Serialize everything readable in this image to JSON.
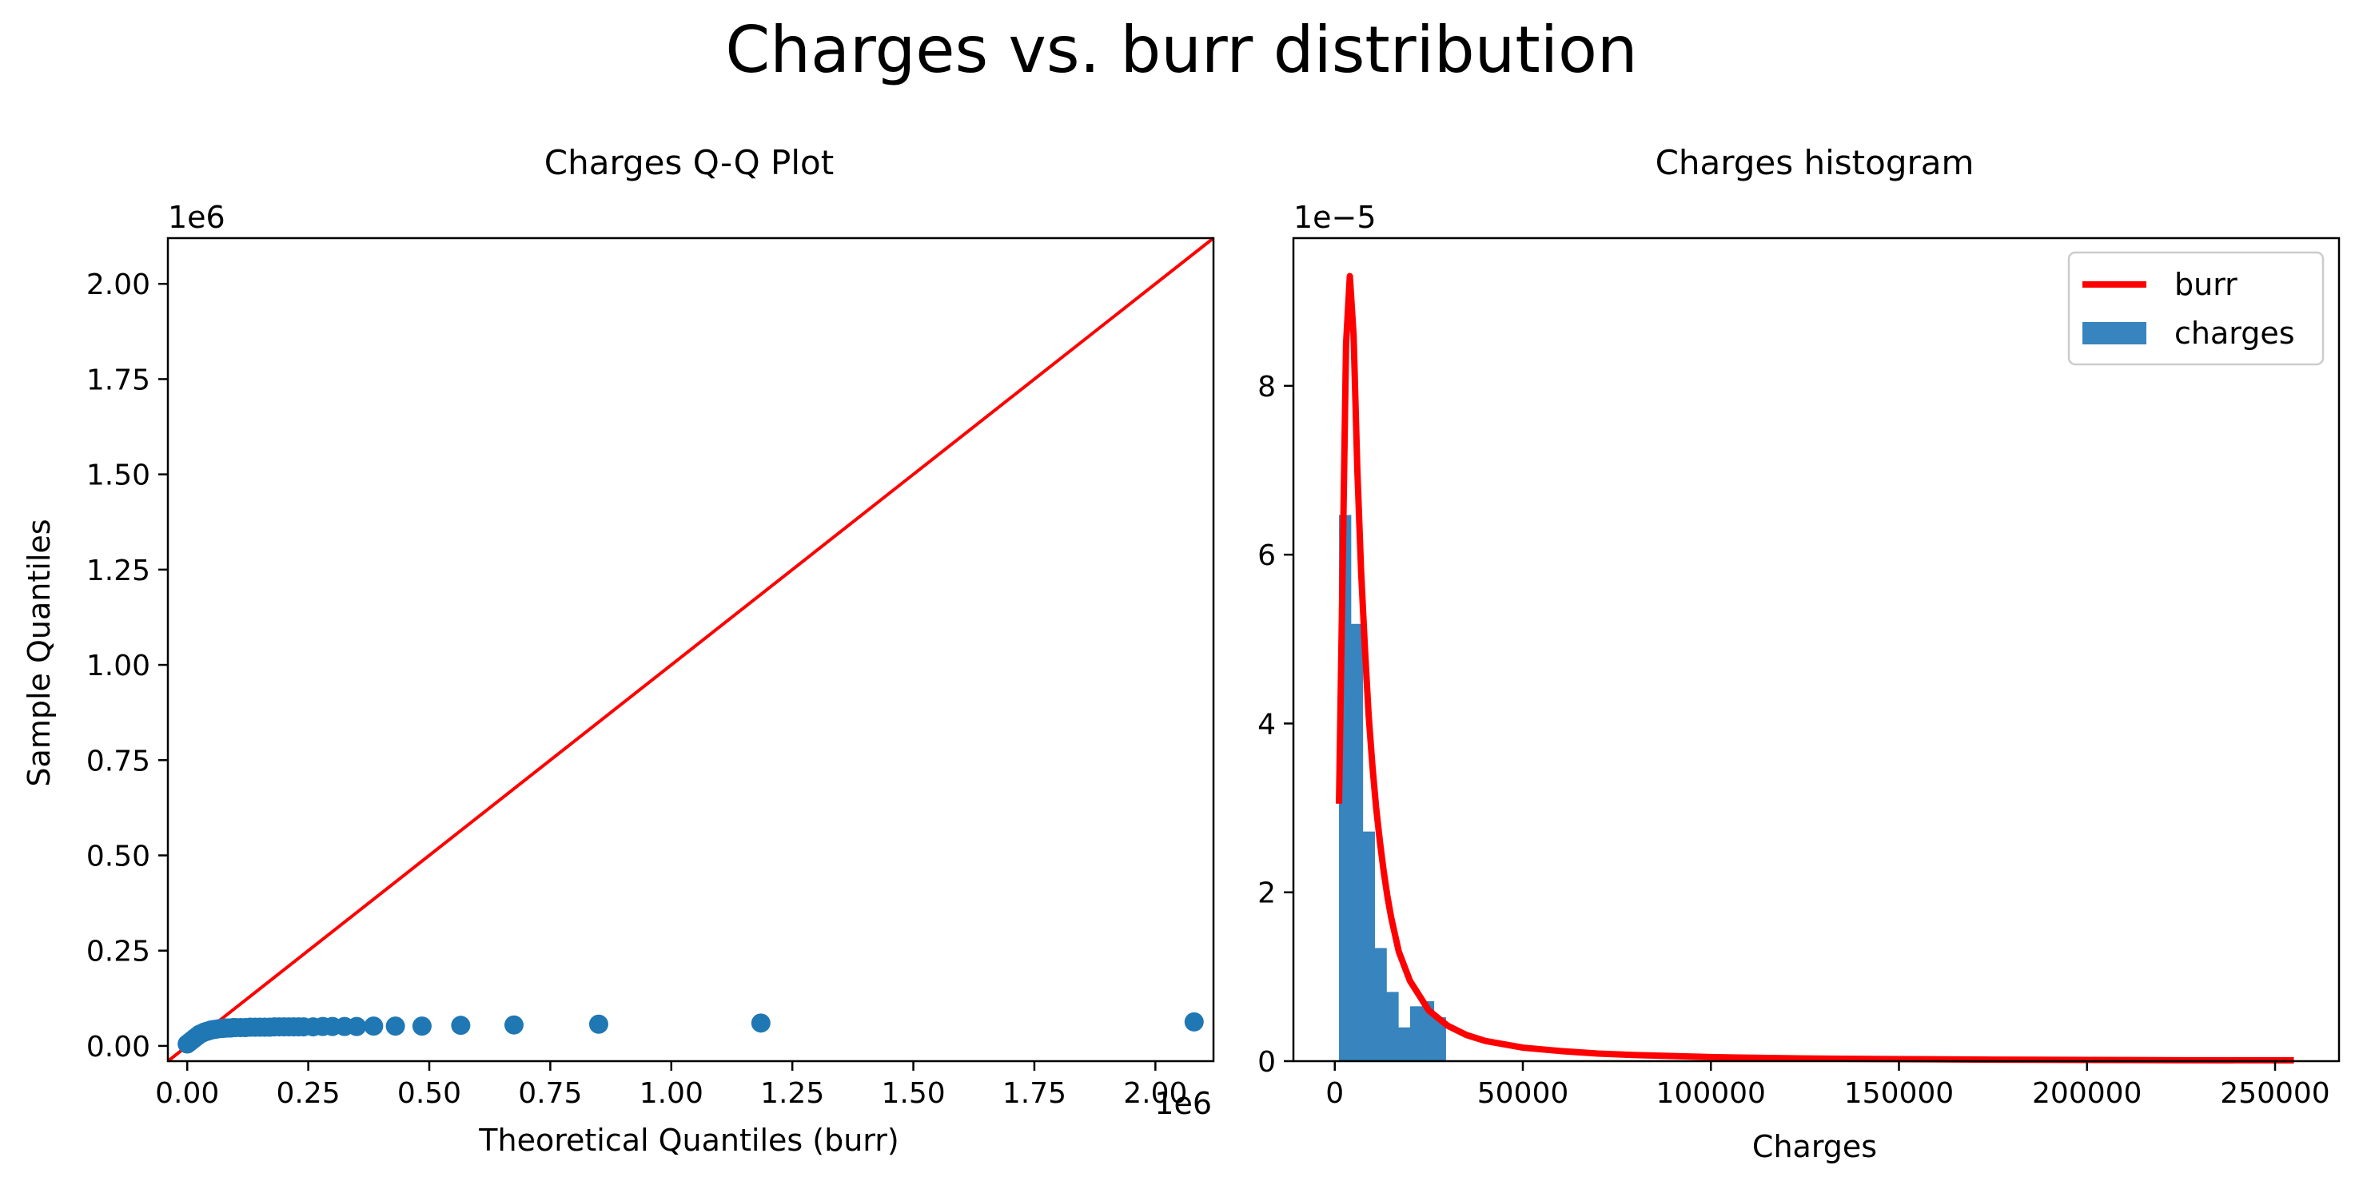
{
  "figure": {
    "suptitle": "Charges vs. burr distribution"
  },
  "chart_data": [
    {
      "type": "scatter",
      "title": "Charges Q-Q Plot",
      "xlabel": "Theoretical Quantiles (burr)",
      "ylabel": "Sample Quantiles",
      "x_offset_label": "1e6",
      "y_offset_label": "1e6",
      "xlim": [
        -0.04,
        2.12
      ],
      "ylim": [
        -0.04,
        2.12
      ],
      "xticks": [
        0.0,
        0.25,
        0.5,
        0.75,
        1.0,
        1.25,
        1.5,
        1.75,
        2.0
      ],
      "xtick_labels": [
        "0.00",
        "0.25",
        "0.50",
        "0.75",
        "1.00",
        "1.25",
        "1.50",
        "1.75",
        "2.00"
      ],
      "yticks": [
        0.0,
        0.25,
        0.5,
        0.75,
        1.0,
        1.25,
        1.5,
        1.75,
        2.0
      ],
      "ytick_labels": [
        "0.00",
        "0.25",
        "0.50",
        "0.75",
        "1.00",
        "1.25",
        "1.50",
        "1.75",
        "2.00"
      ],
      "grid": false,
      "reference_line": {
        "color": "#ff0000",
        "points": [
          [
            -0.04,
            -0.04
          ],
          [
            2.12,
            2.12
          ]
        ]
      },
      "marker_color": "#1f77b4",
      "points": {
        "x": [
          0.0,
          0.005,
          0.01,
          0.015,
          0.02,
          0.025,
          0.03,
          0.035,
          0.04,
          0.045,
          0.05,
          0.055,
          0.06,
          0.065,
          0.07,
          0.075,
          0.08,
          0.085,
          0.09,
          0.095,
          0.1,
          0.11,
          0.12,
          0.13,
          0.14,
          0.15,
          0.16,
          0.17,
          0.18,
          0.19,
          0.2,
          0.21,
          0.22,
          0.23,
          0.24,
          0.26,
          0.28,
          0.3,
          0.325,
          0.35,
          0.385,
          0.43,
          0.485,
          0.565,
          0.675,
          0.85,
          1.185,
          2.08
        ],
        "y": [
          0.005,
          0.01,
          0.015,
          0.02,
          0.025,
          0.03,
          0.033,
          0.036,
          0.038,
          0.04,
          0.042,
          0.043,
          0.044,
          0.045,
          0.046,
          0.046,
          0.047,
          0.047,
          0.047,
          0.048,
          0.048,
          0.048,
          0.048,
          0.049,
          0.049,
          0.049,
          0.049,
          0.049,
          0.05,
          0.05,
          0.05,
          0.05,
          0.05,
          0.05,
          0.05,
          0.05,
          0.051,
          0.051,
          0.051,
          0.051,
          0.052,
          0.052,
          0.052,
          0.054,
          0.055,
          0.057,
          0.06,
          0.063
        ]
      }
    },
    {
      "type": "bar",
      "title": "Charges histogram",
      "xlabel": "Charges",
      "ylabel": "",
      "y_offset_label": "1e−5",
      "xlim": [
        -11000,
        267000
      ],
      "ylim": [
        0,
        9.75
      ],
      "xticks": [
        0,
        50000,
        100000,
        150000,
        200000,
        250000
      ],
      "xtick_labels": [
        "0",
        "50000",
        "100000",
        "150000",
        "200000",
        "250000"
      ],
      "yticks": [
        0,
        2,
        4,
        6,
        8
      ],
      "ytick_labels": [
        "0",
        "2",
        "4",
        "6",
        "8"
      ],
      "grid": false,
      "legend": {
        "placement": "top-right",
        "entries": [
          "burr",
          "charges"
        ]
      },
      "series": [
        {
          "name": "charges",
          "kind": "histogram",
          "color": "#3784bf",
          "bins_start": 1120,
          "bin_width": 3150,
          "values": [
            6.47,
            5.18,
            2.72,
            1.34,
            0.82,
            0.4,
            0.65,
            0.71,
            0.52,
            0.0,
            0.0,
            0.0,
            0.0,
            0.0,
            0.0,
            0.0,
            0.0,
            0.0,
            0.0,
            0.0
          ]
        },
        {
          "name": "burr",
          "kind": "line",
          "color": "#ff0000",
          "x": [
            1120,
            2000,
            3000,
            4000,
            5000,
            6000,
            7000,
            8000,
            9000,
            10000,
            11000,
            12000,
            13000,
            14000,
            15000,
            17000,
            20000,
            25000,
            30000,
            35000,
            40000,
            50000,
            60000,
            70000,
            80000,
            100000,
            125000,
            150000,
            175000,
            200000,
            225000,
            255000
          ],
          "y": [
            3.05,
            5.6,
            8.5,
            9.3,
            8.6,
            7.0,
            5.8,
            4.9,
            4.1,
            3.5,
            3.0,
            2.6,
            2.25,
            1.95,
            1.7,
            1.3,
            0.95,
            0.6,
            0.42,
            0.31,
            0.24,
            0.16,
            0.12,
            0.09,
            0.072,
            0.048,
            0.032,
            0.024,
            0.018,
            0.014,
            0.011,
            0.009
          ]
        }
      ]
    }
  ]
}
